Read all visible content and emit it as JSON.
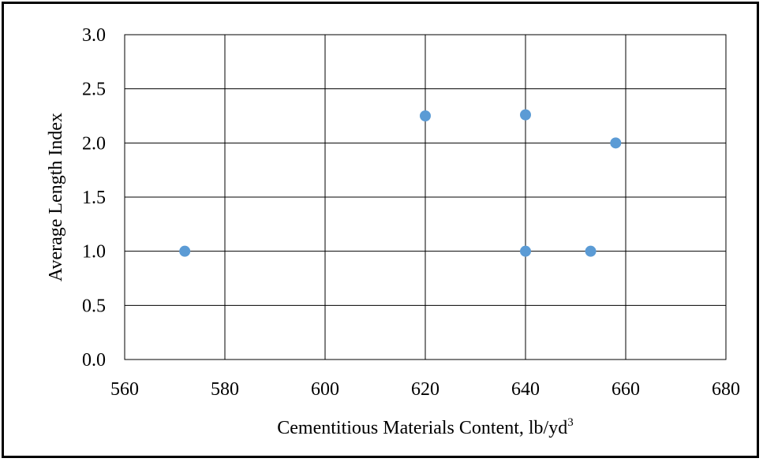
{
  "chart_data": {
    "type": "scatter",
    "title": "",
    "xlabel": "Cementitious Materials Content, lb/yd",
    "xlabel_superscript": "3",
    "ylabel": "Average Length Index",
    "xlim": [
      560,
      680
    ],
    "ylim": [
      0.0,
      3.0
    ],
    "x_ticks": [
      "560",
      "580",
      "600",
      "620",
      "640",
      "660",
      "680"
    ],
    "y_ticks": [
      "0.0",
      "0.5",
      "1.0",
      "1.5",
      "2.0",
      "2.5",
      "3.0"
    ],
    "x_tick_values": [
      560,
      580,
      600,
      620,
      640,
      660,
      680
    ],
    "y_tick_values": [
      0.0,
      0.5,
      1.0,
      1.5,
      2.0,
      2.5,
      3.0
    ],
    "grid": true,
    "legend": "none",
    "marker_color": "#5b9bd5",
    "points": [
      {
        "x": 572,
        "y": 1.0
      },
      {
        "x": 620,
        "y": 2.25
      },
      {
        "x": 640,
        "y": 2.26
      },
      {
        "x": 640,
        "y": 1.0
      },
      {
        "x": 653,
        "y": 1.0
      },
      {
        "x": 658,
        "y": 2.0
      }
    ]
  }
}
